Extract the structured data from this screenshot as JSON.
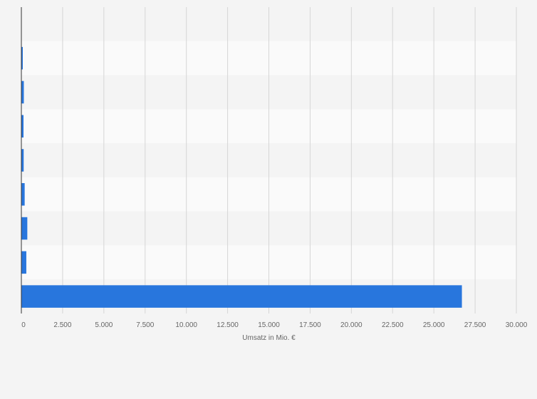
{
  "chart_data": {
    "type": "bar",
    "orientation": "horizontal",
    "categories": [
      "",
      "",
      "",
      "",
      "",
      "",
      "",
      "",
      ""
    ],
    "values": [
      0,
      60,
      150,
      130,
      140,
      200,
      360,
      300,
      26700
    ],
    "title": "",
    "xlabel": "Umsatz in Mio. €",
    "ylabel": "",
    "xlim": [
      0,
      30000
    ],
    "xticks": [
      {
        "value": 0,
        "label": "0"
      },
      {
        "value": 2500,
        "label": "2.500"
      },
      {
        "value": 5000,
        "label": "5.000"
      },
      {
        "value": 7500,
        "label": "7.500"
      },
      {
        "value": 10000,
        "label": "10.000"
      },
      {
        "value": 12500,
        "label": "12.500"
      },
      {
        "value": 15000,
        "label": "15.000"
      },
      {
        "value": 17500,
        "label": "17.500"
      },
      {
        "value": 20000,
        "label": "20.000"
      },
      {
        "value": 22500,
        "label": "22.500"
      },
      {
        "value": 25000,
        "label": "25.000"
      },
      {
        "value": 27500,
        "label": "27.500"
      },
      {
        "value": 30000,
        "label": "30.000"
      }
    ],
    "grid": true,
    "colors": {
      "bar": "#2876dd",
      "background": "#f4f4f4",
      "band_light": "#fafafa",
      "band_dark": "#f4f4f4",
      "grid": "#d6d6d6",
      "axis": "#333333",
      "text": "#666666"
    }
  }
}
